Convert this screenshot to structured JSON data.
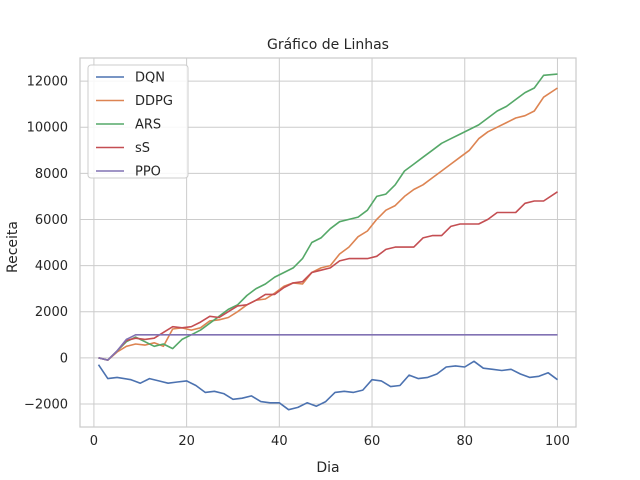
{
  "chart_data": {
    "type": "line",
    "title": "Gráfico de Linhas",
    "xlabel": "Dia",
    "ylabel": "Receita",
    "xlim": [
      -3,
      104
    ],
    "ylim": [
      -3000,
      13000
    ],
    "xticks": [
      0,
      20,
      40,
      60,
      80,
      100
    ],
    "yticks": [
      -2000,
      0,
      2000,
      4000,
      6000,
      8000,
      10000,
      12000
    ],
    "grid": true,
    "legend": "top-left",
    "series": [
      {
        "name": "DQN",
        "color": "#4c72b0",
        "points": [
          [
            1,
            -300
          ],
          [
            3,
            -900
          ],
          [
            5,
            -850
          ],
          [
            8,
            -950
          ],
          [
            10,
            -1100
          ],
          [
            12,
            -900
          ],
          [
            14,
            -1000
          ],
          [
            16,
            -1100
          ],
          [
            18,
            -1050
          ],
          [
            20,
            -1000
          ],
          [
            22,
            -1200
          ],
          [
            24,
            -1500
          ],
          [
            26,
            -1450
          ],
          [
            28,
            -1550
          ],
          [
            30,
            -1800
          ],
          [
            32,
            -1750
          ],
          [
            34,
            -1650
          ],
          [
            36,
            -1900
          ],
          [
            38,
            -1950
          ],
          [
            40,
            -1950
          ],
          [
            42,
            -2250
          ],
          [
            44,
            -2150
          ],
          [
            46,
            -1950
          ],
          [
            48,
            -2100
          ],
          [
            50,
            -1900
          ],
          [
            52,
            -1500
          ],
          [
            54,
            -1450
          ],
          [
            56,
            -1500
          ],
          [
            58,
            -1400
          ],
          [
            60,
            -950
          ],
          [
            62,
            -1000
          ],
          [
            64,
            -1250
          ],
          [
            66,
            -1200
          ],
          [
            68,
            -750
          ],
          [
            70,
            -900
          ],
          [
            72,
            -850
          ],
          [
            74,
            -700
          ],
          [
            76,
            -400
          ],
          [
            78,
            -350
          ],
          [
            80,
            -400
          ],
          [
            82,
            -150
          ],
          [
            84,
            -450
          ],
          [
            86,
            -500
          ],
          [
            88,
            -550
          ],
          [
            90,
            -500
          ],
          [
            92,
            -700
          ],
          [
            94,
            -850
          ],
          [
            96,
            -800
          ],
          [
            98,
            -650
          ],
          [
            100,
            -950
          ]
        ]
      },
      {
        "name": "DDPG",
        "color": "#dd8452",
        "points": [
          [
            1,
            0
          ],
          [
            3,
            -100
          ],
          [
            5,
            250
          ],
          [
            7,
            500
          ],
          [
            9,
            600
          ],
          [
            11,
            550
          ],
          [
            13,
            650
          ],
          [
            15,
            500
          ],
          [
            17,
            1250
          ],
          [
            19,
            1300
          ],
          [
            21,
            1200
          ],
          [
            23,
            1300
          ],
          [
            25,
            1600
          ],
          [
            27,
            1650
          ],
          [
            29,
            1750
          ],
          [
            31,
            2000
          ],
          [
            33,
            2300
          ],
          [
            35,
            2500
          ],
          [
            37,
            2550
          ],
          [
            39,
            2800
          ],
          [
            41,
            3100
          ],
          [
            43,
            3250
          ],
          [
            45,
            3200
          ],
          [
            47,
            3700
          ],
          [
            49,
            3900
          ],
          [
            51,
            4000
          ],
          [
            53,
            4500
          ],
          [
            55,
            4800
          ],
          [
            57,
            5250
          ],
          [
            59,
            5500
          ],
          [
            61,
            6000
          ],
          [
            63,
            6400
          ],
          [
            65,
            6600
          ],
          [
            67,
            7000
          ],
          [
            69,
            7300
          ],
          [
            71,
            7500
          ],
          [
            73,
            7800
          ],
          [
            75,
            8100
          ],
          [
            77,
            8400
          ],
          [
            79,
            8700
          ],
          [
            81,
            9000
          ],
          [
            83,
            9500
          ],
          [
            85,
            9800
          ],
          [
            87,
            10000
          ],
          [
            89,
            10200
          ],
          [
            91,
            10400
          ],
          [
            93,
            10500
          ],
          [
            95,
            10700
          ],
          [
            97,
            11300
          ],
          [
            100,
            11700
          ]
        ]
      },
      {
        "name": "ARS",
        "color": "#55a868",
        "points": [
          [
            1,
            0
          ],
          [
            3,
            -100
          ],
          [
            5,
            300
          ],
          [
            7,
            700
          ],
          [
            9,
            900
          ],
          [
            11,
            700
          ],
          [
            13,
            500
          ],
          [
            15,
            600
          ],
          [
            17,
            400
          ],
          [
            19,
            800
          ],
          [
            21,
            1000
          ],
          [
            23,
            1200
          ],
          [
            25,
            1500
          ],
          [
            27,
            1800
          ],
          [
            29,
            2100
          ],
          [
            31,
            2300
          ],
          [
            33,
            2700
          ],
          [
            35,
            3000
          ],
          [
            37,
            3200
          ],
          [
            39,
            3500
          ],
          [
            41,
            3700
          ],
          [
            43,
            3900
          ],
          [
            45,
            4300
          ],
          [
            47,
            5000
          ],
          [
            49,
            5200
          ],
          [
            51,
            5600
          ],
          [
            53,
            5900
          ],
          [
            55,
            6000
          ],
          [
            57,
            6100
          ],
          [
            59,
            6400
          ],
          [
            61,
            7000
          ],
          [
            63,
            7100
          ],
          [
            65,
            7500
          ],
          [
            67,
            8100
          ],
          [
            69,
            8400
          ],
          [
            71,
            8700
          ],
          [
            73,
            9000
          ],
          [
            75,
            9300
          ],
          [
            77,
            9500
          ],
          [
            79,
            9700
          ],
          [
            81,
            9900
          ],
          [
            83,
            10100
          ],
          [
            85,
            10400
          ],
          [
            87,
            10700
          ],
          [
            89,
            10900
          ],
          [
            91,
            11200
          ],
          [
            93,
            11500
          ],
          [
            95,
            11700
          ],
          [
            97,
            12250
          ],
          [
            100,
            12300
          ]
        ]
      },
      {
        "name": "sS",
        "color": "#c44e52",
        "points": [
          [
            1,
            0
          ],
          [
            3,
            -100
          ],
          [
            5,
            300
          ],
          [
            7,
            750
          ],
          [
            9,
            850
          ],
          [
            11,
            800
          ],
          [
            13,
            850
          ],
          [
            15,
            1100
          ],
          [
            17,
            1350
          ],
          [
            19,
            1300
          ],
          [
            21,
            1350
          ],
          [
            23,
            1550
          ],
          [
            25,
            1800
          ],
          [
            27,
            1750
          ],
          [
            29,
            2000
          ],
          [
            31,
            2250
          ],
          [
            33,
            2300
          ],
          [
            35,
            2500
          ],
          [
            37,
            2750
          ],
          [
            39,
            2750
          ],
          [
            41,
            3050
          ],
          [
            43,
            3250
          ],
          [
            45,
            3300
          ],
          [
            47,
            3700
          ],
          [
            49,
            3800
          ],
          [
            51,
            3900
          ],
          [
            53,
            4200
          ],
          [
            55,
            4300
          ],
          [
            57,
            4300
          ],
          [
            59,
            4300
          ],
          [
            61,
            4400
          ],
          [
            63,
            4700
          ],
          [
            65,
            4800
          ],
          [
            67,
            4800
          ],
          [
            69,
            4800
          ],
          [
            71,
            5200
          ],
          [
            73,
            5300
          ],
          [
            75,
            5300
          ],
          [
            77,
            5700
          ],
          [
            79,
            5800
          ],
          [
            81,
            5800
          ],
          [
            83,
            5800
          ],
          [
            85,
            6000
          ],
          [
            87,
            6300
          ],
          [
            89,
            6300
          ],
          [
            91,
            6300
          ],
          [
            93,
            6700
          ],
          [
            95,
            6800
          ],
          [
            97,
            6800
          ],
          [
            100,
            7200
          ]
        ]
      },
      {
        "name": "PPO",
        "color": "#8172b3",
        "points": [
          [
            1,
            0
          ],
          [
            3,
            -100
          ],
          [
            5,
            300
          ],
          [
            7,
            800
          ],
          [
            9,
            1000
          ],
          [
            11,
            1000
          ],
          [
            13,
            1000
          ],
          [
            15,
            1000
          ],
          [
            17,
            1000
          ],
          [
            19,
            1000
          ],
          [
            21,
            1000
          ],
          [
            23,
            1000
          ],
          [
            25,
            1000
          ],
          [
            27,
            1000
          ],
          [
            29,
            1000
          ],
          [
            31,
            1000
          ],
          [
            33,
            1000
          ],
          [
            35,
            1000
          ],
          [
            37,
            1000
          ],
          [
            39,
            1000
          ],
          [
            41,
            1000
          ],
          [
            43,
            1000
          ],
          [
            45,
            1000
          ],
          [
            47,
            1000
          ],
          [
            49,
            1000
          ],
          [
            51,
            1000
          ],
          [
            53,
            1000
          ],
          [
            55,
            1000
          ],
          [
            57,
            1000
          ],
          [
            59,
            1000
          ],
          [
            61,
            1000
          ],
          [
            63,
            1000
          ],
          [
            65,
            1000
          ],
          [
            67,
            1000
          ],
          [
            69,
            1000
          ],
          [
            71,
            1000
          ],
          [
            73,
            1000
          ],
          [
            75,
            1000
          ],
          [
            77,
            1000
          ],
          [
            79,
            1000
          ],
          [
            81,
            1000
          ],
          [
            83,
            1000
          ],
          [
            85,
            1000
          ],
          [
            87,
            1000
          ],
          [
            89,
            1000
          ],
          [
            91,
            1000
          ],
          [
            93,
            1000
          ],
          [
            95,
            1000
          ],
          [
            97,
            1000
          ],
          [
            100,
            1000
          ]
        ]
      }
    ]
  }
}
